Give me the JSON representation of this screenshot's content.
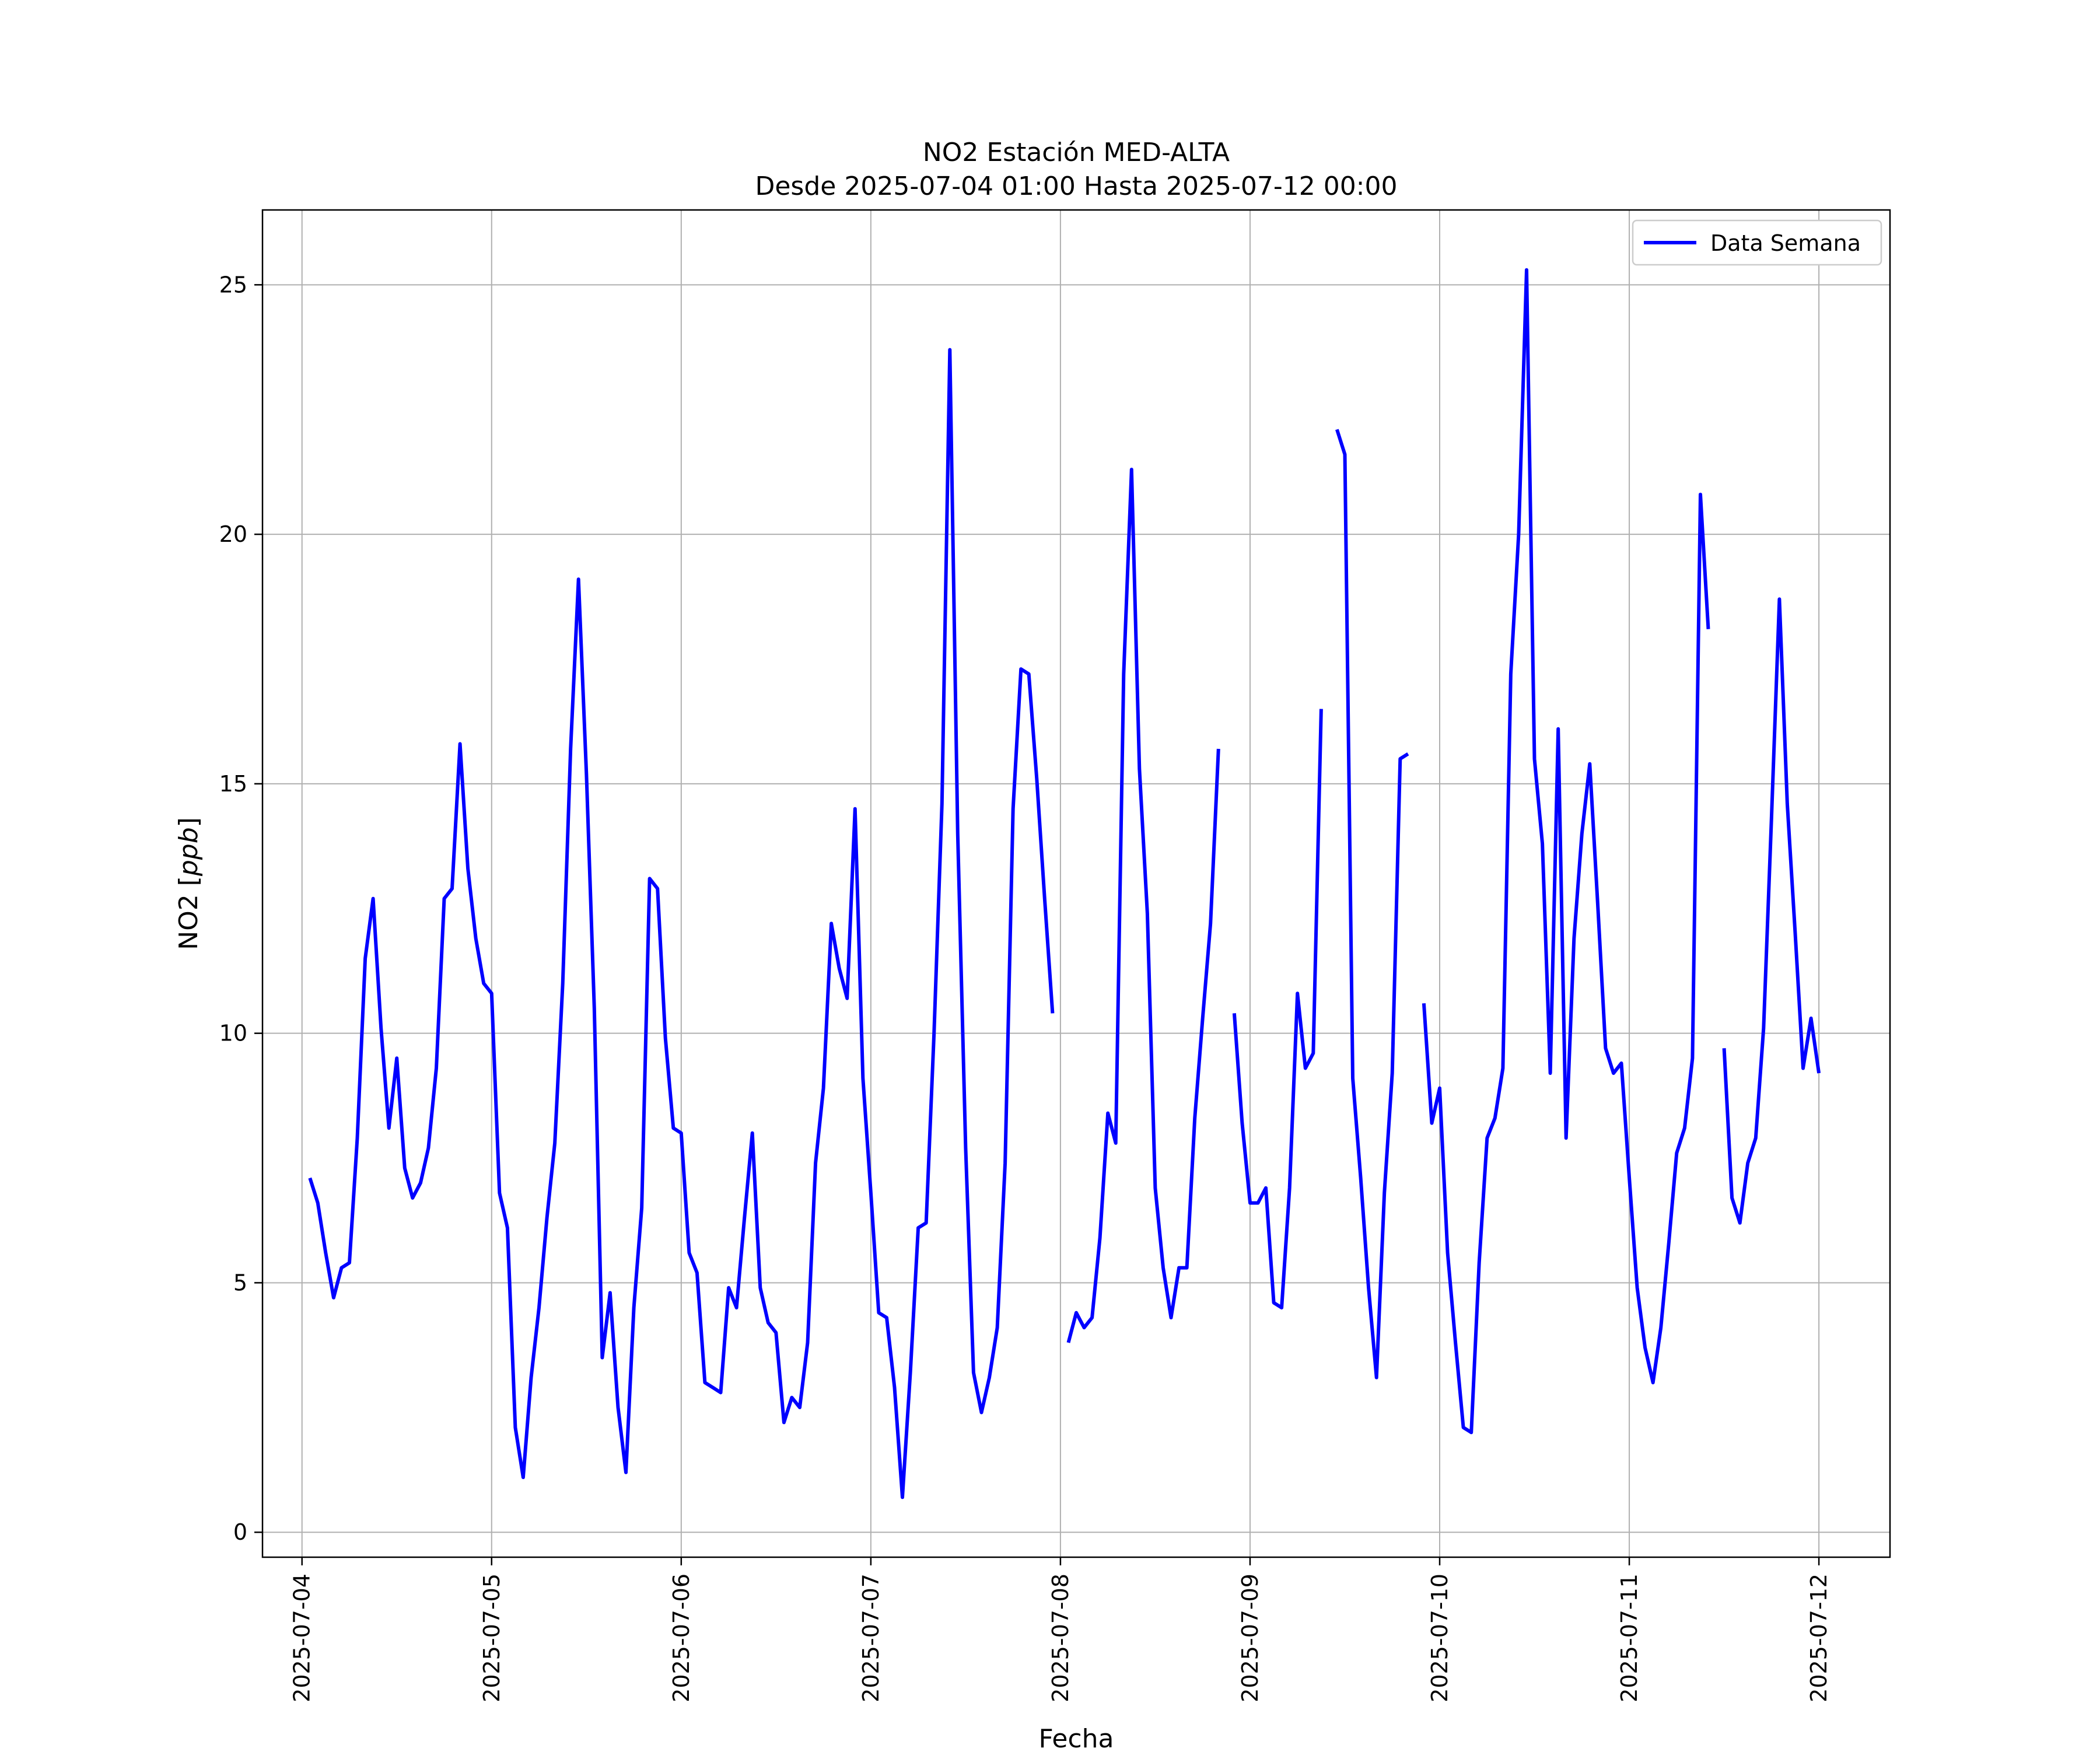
{
  "chart_data": {
    "type": "line",
    "title": "NO2 Estación MED-ALTA",
    "subtitle": "Desde 2025-07-04 01:00 Hasta 2025-07-12 00:00",
    "xlabel": "Fecha",
    "ylabel": "NO2 [ppb]",
    "ylim": [
      -0.5,
      26.5
    ],
    "xlim": [
      "2025-07-03 19:00",
      "2025-07-12 09:00"
    ],
    "xticks": [
      "2025-07-04",
      "2025-07-05",
      "2025-07-06",
      "2025-07-07",
      "2025-07-08",
      "2025-07-09",
      "2025-07-10",
      "2025-07-11",
      "2025-07-12"
    ],
    "yticks": [
      0,
      5,
      10,
      15,
      20,
      25
    ],
    "grid": true,
    "legend": {
      "position": "top-right"
    },
    "series": [
      {
        "name": "Data Semana",
        "color": "#0000ff",
        "points": [
          {
            "x": "2025-07-04 01:00",
            "y": 7.1
          },
          {
            "x": "2025-07-04 02:00",
            "y": 6.6
          },
          {
            "x": "2025-07-04 03:00",
            "y": 5.6
          },
          {
            "x": "2025-07-04 04:00",
            "y": 4.7
          },
          {
            "x": "2025-07-04 05:00",
            "y": 5.3
          },
          {
            "x": "2025-07-04 06:00",
            "y": 5.4
          },
          {
            "x": "2025-07-04 07:00",
            "y": 7.9
          },
          {
            "x": "2025-07-04 08:00",
            "y": 11.5
          },
          {
            "x": "2025-07-04 09:00",
            "y": 12.7
          },
          {
            "x": "2025-07-04 10:00",
            "y": 10.1
          },
          {
            "x": "2025-07-04 11:00",
            "y": 8.1
          },
          {
            "x": "2025-07-04 12:00",
            "y": 9.5
          },
          {
            "x": "2025-07-04 13:00",
            "y": 7.3
          },
          {
            "x": "2025-07-04 14:00",
            "y": 6.7
          },
          {
            "x": "2025-07-04 15:00",
            "y": 7.0
          },
          {
            "x": "2025-07-04 16:00",
            "y": 7.7
          },
          {
            "x": "2025-07-04 17:00",
            "y": 9.3
          },
          {
            "x": "2025-07-04 18:00",
            "y": 12.7
          },
          {
            "x": "2025-07-04 19:00",
            "y": 12.9
          },
          {
            "x": "2025-07-04 20:00",
            "y": 15.8
          },
          {
            "x": "2025-07-04 21:00",
            "y": 13.3
          },
          {
            "x": "2025-07-04 22:00",
            "y": 11.9
          },
          {
            "x": "2025-07-04 23:00",
            "y": 11.0
          },
          {
            "x": "2025-07-05 00:00",
            "y": 10.8
          },
          {
            "x": "2025-07-05 01:00",
            "y": 6.8
          },
          {
            "x": "2025-07-05 02:00",
            "y": 6.1
          },
          {
            "x": "2025-07-05 03:00",
            "y": 2.1
          },
          {
            "x": "2025-07-05 04:00",
            "y": 1.1
          },
          {
            "x": "2025-07-05 05:00",
            "y": 3.1
          },
          {
            "x": "2025-07-05 06:00",
            "y": 4.5
          },
          {
            "x": "2025-07-05 07:00",
            "y": 6.3
          },
          {
            "x": "2025-07-05 08:00",
            "y": 7.8
          },
          {
            "x": "2025-07-05 09:00",
            "y": 11.0
          },
          {
            "x": "2025-07-05 10:00",
            "y": 15.7
          },
          {
            "x": "2025-07-05 11:00",
            "y": 19.1
          },
          {
            "x": "2025-07-05 12:00",
            "y": 15.2
          },
          {
            "x": "2025-07-05 13:00",
            "y": 10.5
          },
          {
            "x": "2025-07-05 14:00",
            "y": 3.5
          },
          {
            "x": "2025-07-05 15:00",
            "y": 4.8
          },
          {
            "x": "2025-07-05 16:00",
            "y": 2.5
          },
          {
            "x": "2025-07-05 17:00",
            "y": 1.2
          },
          {
            "x": "2025-07-05 18:00",
            "y": 4.5
          },
          {
            "x": "2025-07-05 19:00",
            "y": 6.5
          },
          {
            "x": "2025-07-05 20:00",
            "y": 13.1
          },
          {
            "x": "2025-07-05 21:00",
            "y": 12.9
          },
          {
            "x": "2025-07-05 22:00",
            "y": 9.9
          },
          {
            "x": "2025-07-05 23:00",
            "y": 8.1
          },
          {
            "x": "2025-07-06 00:00",
            "y": 8.0
          },
          {
            "x": "2025-07-06 01:00",
            "y": 5.6
          },
          {
            "x": "2025-07-06 02:00",
            "y": 5.2
          },
          {
            "x": "2025-07-06 03:00",
            "y": 3.0
          },
          {
            "x": "2025-07-06 04:00",
            "y": 2.9
          },
          {
            "x": "2025-07-06 05:00",
            "y": 2.8
          },
          {
            "x": "2025-07-06 06:00",
            "y": 4.9
          },
          {
            "x": "2025-07-06 07:00",
            "y": 4.5
          },
          {
            "x": "2025-07-06 08:00",
            "y": 6.3
          },
          {
            "x": "2025-07-06 09:00",
            "y": 8.0
          },
          {
            "x": "2025-07-06 10:00",
            "y": 4.9
          },
          {
            "x": "2025-07-06 11:00",
            "y": 4.2
          },
          {
            "x": "2025-07-06 12:00",
            "y": 4.0
          },
          {
            "x": "2025-07-06 13:00",
            "y": 2.2
          },
          {
            "x": "2025-07-06 14:00",
            "y": 2.7
          },
          {
            "x": "2025-07-06 15:00",
            "y": 2.5
          },
          {
            "x": "2025-07-06 16:00",
            "y": 3.8
          },
          {
            "x": "2025-07-06 17:00",
            "y": 7.4
          },
          {
            "x": "2025-07-06 18:00",
            "y": 8.9
          },
          {
            "x": "2025-07-06 19:00",
            "y": 12.2
          },
          {
            "x": "2025-07-06 20:00",
            "y": 11.3
          },
          {
            "x": "2025-07-06 21:00",
            "y": 10.7
          },
          {
            "x": "2025-07-06 22:00",
            "y": 14.5
          },
          {
            "x": "2025-07-06 23:00",
            "y": 9.1
          },
          {
            "x": "2025-07-07 00:00",
            "y": 6.8
          },
          {
            "x": "2025-07-07 01:00",
            "y": 4.4
          },
          {
            "x": "2025-07-07 02:00",
            "y": 4.3
          },
          {
            "x": "2025-07-07 03:00",
            "y": 2.9
          },
          {
            "x": "2025-07-07 04:00",
            "y": 0.7
          },
          {
            "x": "2025-07-07 05:00",
            "y": 3.2
          },
          {
            "x": "2025-07-07 06:00",
            "y": 6.1
          },
          {
            "x": "2025-07-07 07:00",
            "y": 6.2
          },
          {
            "x": "2025-07-07 08:00",
            "y": 10.0
          },
          {
            "x": "2025-07-07 09:00",
            "y": 14.6
          },
          {
            "x": "2025-07-07 10:00",
            "y": 23.7
          },
          {
            "x": "2025-07-07 11:00",
            "y": 14.0
          },
          {
            "x": "2025-07-07 12:00",
            "y": 7.7
          },
          {
            "x": "2025-07-07 13:00",
            "y": 3.2
          },
          {
            "x": "2025-07-07 14:00",
            "y": 2.4
          },
          {
            "x": "2025-07-07 15:00",
            "y": 3.1
          },
          {
            "x": "2025-07-07 16:00",
            "y": 4.1
          },
          {
            "x": "2025-07-07 17:00",
            "y": 7.4
          },
          {
            "x": "2025-07-07 18:00",
            "y": 14.5
          },
          {
            "x": "2025-07-07 19:00",
            "y": 17.3
          },
          {
            "x": "2025-07-07 20:00",
            "y": 17.2
          },
          {
            "x": "2025-07-07 21:00",
            "y": 15.1
          },
          {
            "x": "2025-07-07 22:00",
            "y": 12.7
          },
          {
            "x": "2025-07-07 23:00",
            "y": 10.4
          },
          {
            "x": "2025-07-08 00:00",
            "y": null
          },
          {
            "x": "2025-07-08 01:00",
            "y": 3.8
          },
          {
            "x": "2025-07-08 02:00",
            "y": 4.4
          },
          {
            "x": "2025-07-08 03:00",
            "y": 4.1
          },
          {
            "x": "2025-07-08 04:00",
            "y": 4.3
          },
          {
            "x": "2025-07-08 05:00",
            "y": 5.9
          },
          {
            "x": "2025-07-08 06:00",
            "y": 8.4
          },
          {
            "x": "2025-07-08 07:00",
            "y": 7.8
          },
          {
            "x": "2025-07-08 08:00",
            "y": 17.2
          },
          {
            "x": "2025-07-08 09:00",
            "y": 21.3
          },
          {
            "x": "2025-07-08 10:00",
            "y": 15.3
          },
          {
            "x": "2025-07-08 11:00",
            "y": 12.4
          },
          {
            "x": "2025-07-08 12:00",
            "y": 6.9
          },
          {
            "x": "2025-07-08 13:00",
            "y": 5.3
          },
          {
            "x": "2025-07-08 14:00",
            "y": 4.3
          },
          {
            "x": "2025-07-08 15:00",
            "y": 5.3
          },
          {
            "x": "2025-07-08 16:00",
            "y": 5.3
          },
          {
            "x": "2025-07-08 17:00",
            "y": 8.3
          },
          {
            "x": "2025-07-08 18:00",
            "y": 10.3
          },
          {
            "x": "2025-07-08 19:00",
            "y": 12.2
          },
          {
            "x": "2025-07-08 20:00",
            "y": 15.7
          },
          {
            "x": "2025-07-08 21:00",
            "y": null
          },
          {
            "x": "2025-07-08 22:00",
            "y": 10.4
          },
          {
            "x": "2025-07-08 23:00",
            "y": 8.2
          },
          {
            "x": "2025-07-09 00:00",
            "y": 6.6
          },
          {
            "x": "2025-07-09 01:00",
            "y": 6.6
          },
          {
            "x": "2025-07-09 02:00",
            "y": 6.9
          },
          {
            "x": "2025-07-09 03:00",
            "y": 4.6
          },
          {
            "x": "2025-07-09 04:00",
            "y": 4.5
          },
          {
            "x": "2025-07-09 05:00",
            "y": 6.9
          },
          {
            "x": "2025-07-09 06:00",
            "y": 10.8
          },
          {
            "x": "2025-07-09 07:00",
            "y": 9.3
          },
          {
            "x": "2025-07-09 08:00",
            "y": 9.6
          },
          {
            "x": "2025-07-09 09:00",
            "y": 16.5
          },
          {
            "x": "2025-07-09 10:00",
            "y": null
          },
          {
            "x": "2025-07-09 11:00",
            "y": 22.1
          },
          {
            "x": "2025-07-09 12:00",
            "y": 21.6
          },
          {
            "x": "2025-07-09 13:00",
            "y": 9.1
          },
          {
            "x": "2025-07-09 14:00",
            "y": 7.1
          },
          {
            "x": "2025-07-09 15:00",
            "y": 4.9
          },
          {
            "x": "2025-07-09 16:00",
            "y": 3.1
          },
          {
            "x": "2025-07-09 17:00",
            "y": 6.8
          },
          {
            "x": "2025-07-09 18:00",
            "y": 9.2
          },
          {
            "x": "2025-07-09 19:00",
            "y": 15.5
          },
          {
            "x": "2025-07-09 20:00",
            "y": 15.6
          },
          {
            "x": "2025-07-09 21:00",
            "y": null
          },
          {
            "x": "2025-07-09 22:00",
            "y": 10.6
          },
          {
            "x": "2025-07-09 23:00",
            "y": 8.2
          },
          {
            "x": "2025-07-10 00:00",
            "y": 8.9
          },
          {
            "x": "2025-07-10 01:00",
            "y": 5.6
          },
          {
            "x": "2025-07-10 02:00",
            "y": 3.8
          },
          {
            "x": "2025-07-10 03:00",
            "y": 2.1
          },
          {
            "x": "2025-07-10 04:00",
            "y": 2.0
          },
          {
            "x": "2025-07-10 05:00",
            "y": 5.4
          },
          {
            "x": "2025-07-10 06:00",
            "y": 7.9
          },
          {
            "x": "2025-07-10 07:00",
            "y": 8.3
          },
          {
            "x": "2025-07-10 08:00",
            "y": 9.3
          },
          {
            "x": "2025-07-10 09:00",
            "y": 17.2
          },
          {
            "x": "2025-07-10 10:00",
            "y": 20.0
          },
          {
            "x": "2025-07-10 11:00",
            "y": 25.3
          },
          {
            "x": "2025-07-10 12:00",
            "y": 15.5
          },
          {
            "x": "2025-07-10 13:00",
            "y": 13.8
          },
          {
            "x": "2025-07-10 14:00",
            "y": 9.2
          },
          {
            "x": "2025-07-10 15:00",
            "y": 16.1
          },
          {
            "x": "2025-07-10 16:00",
            "y": 7.9
          },
          {
            "x": "2025-07-10 17:00",
            "y": 11.9
          },
          {
            "x": "2025-07-10 18:00",
            "y": 14.0
          },
          {
            "x": "2025-07-10 19:00",
            "y": 15.4
          },
          {
            "x": "2025-07-10 20:00",
            "y": 12.6
          },
          {
            "x": "2025-07-10 21:00",
            "y": 9.7
          },
          {
            "x": "2025-07-10 22:00",
            "y": 9.2
          },
          {
            "x": "2025-07-10 23:00",
            "y": 9.4
          },
          {
            "x": "2025-07-11 00:00",
            "y": 7.1
          },
          {
            "x": "2025-07-11 01:00",
            "y": 4.9
          },
          {
            "x": "2025-07-11 02:00",
            "y": 3.7
          },
          {
            "x": "2025-07-11 03:00",
            "y": 3.0
          },
          {
            "x": "2025-07-11 04:00",
            "y": 4.1
          },
          {
            "x": "2025-07-11 05:00",
            "y": 5.8
          },
          {
            "x": "2025-07-11 06:00",
            "y": 7.6
          },
          {
            "x": "2025-07-11 07:00",
            "y": 8.1
          },
          {
            "x": "2025-07-11 08:00",
            "y": 9.5
          },
          {
            "x": "2025-07-11 09:00",
            "y": 20.8
          },
          {
            "x": "2025-07-11 10:00",
            "y": 18.1
          },
          {
            "x": "2025-07-11 11:00",
            "y": null
          },
          {
            "x": "2025-07-11 12:00",
            "y": 9.7
          },
          {
            "x": "2025-07-11 13:00",
            "y": 6.7
          },
          {
            "x": "2025-07-11 14:00",
            "y": 6.2
          },
          {
            "x": "2025-07-11 15:00",
            "y": 7.4
          },
          {
            "x": "2025-07-11 16:00",
            "y": 7.9
          },
          {
            "x": "2025-07-11 17:00",
            "y": 10.1
          },
          {
            "x": "2025-07-11 18:00",
            "y": 14.3
          },
          {
            "x": "2025-07-11 19:00",
            "y": 18.7
          },
          {
            "x": "2025-07-11 20:00",
            "y": 14.6
          },
          {
            "x": "2025-07-11 21:00",
            "y": 12.0
          },
          {
            "x": "2025-07-11 22:00",
            "y": 9.3
          },
          {
            "x": "2025-07-11 23:00",
            "y": 10.3
          },
          {
            "x": "2025-07-12 00:00",
            "y": 9.2
          }
        ]
      }
    ]
  }
}
